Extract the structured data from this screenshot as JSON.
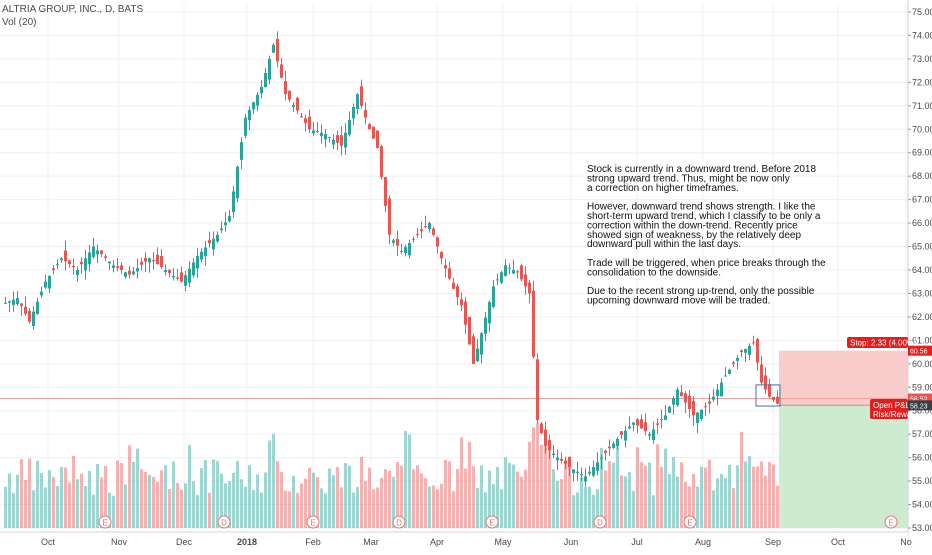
{
  "header": {
    "symbol": "ALTRIA GROUP, INC., D, BATS",
    "indicator": "Vol (20)"
  },
  "annotation": {
    "lines": [
      "Stock is currently in a downward trend. Before 2018",
      "strong upward trend. Thus, might be now only",
      "a correction on higher timeframes.",
      "",
      "However, downward trend shows strength. I like the",
      "short-term upward trend, which I classify to be only a",
      "correction within the down-trend. Recently price",
      "showed sign of weakness, by the relatively deep",
      "downward pull within the last days.",
      "",
      "Trade will be triggered, when price breaks through the",
      "consolidation to the downside.",
      "",
      "Due to the recent strong up-trend, only the possible",
      "upcoming downward move will be traded."
    ]
  },
  "position": {
    "stop_label": "Stop: 2.33 (4.00%)",
    "stop_price": "60.56",
    "current_price": "58.52",
    "entry_price": "58.23",
    "pnl_label": "Open P&L:",
    "risk_label": "Risk/Rewa"
  },
  "colors": {
    "up": "#26a69a",
    "down": "#ef5350",
    "stop_zone": "#f9cccc",
    "target_zone": "#cdebd1",
    "price_line": "#f2a0a0",
    "label_red": "#e31e1e"
  },
  "chart_data": {
    "type": "candlestick",
    "price_axis": {
      "ylim": [
        53,
        75
      ],
      "ticks": [
        "75.00",
        "74.00",
        "73.00",
        "72.00",
        "71.00",
        "70.00",
        "69.00",
        "68.00",
        "67.00",
        "66.00",
        "65.00",
        "64.00",
        "63.00",
        "62.00",
        "61.00",
        "60.00",
        "59.00",
        "58.00",
        "57.00",
        "56.00",
        "55.00",
        "54.00",
        "53.00"
      ]
    },
    "time_axis": {
      "labels": [
        "Oct",
        "Nov",
        "Dec",
        "2018",
        "Feb",
        "Mar",
        "Apr",
        "May",
        "Jun",
        "Jul",
        "Aug",
        "Sep",
        "Oct",
        "No"
      ]
    },
    "events": [
      {
        "label": "E",
        "month": "Nov"
      },
      {
        "label": "D",
        "month": "Dec"
      },
      {
        "label": "E",
        "month": "Feb"
      },
      {
        "label": "D",
        "month": "Mar"
      },
      {
        "label": "E",
        "month": "Apr"
      },
      {
        "label": "D",
        "month": "Jun"
      },
      {
        "label": "E",
        "month": "Jul"
      },
      {
        "label": "E",
        "month": "Oct"
      }
    ],
    "price_path": [
      [
        0,
        62.6
      ],
      [
        3,
        62.8
      ],
      [
        6,
        61.8
      ],
      [
        10,
        63.5
      ],
      [
        14,
        64.5
      ],
      [
        18,
        64.0
      ],
      [
        22,
        65.0
      ],
      [
        27,
        64.2
      ],
      [
        31,
        63.8
      ],
      [
        36,
        64.5
      ],
      [
        40,
        64.0
      ],
      [
        44,
        63.5
      ],
      [
        48,
        64.6
      ],
      [
        53,
        65.5
      ],
      [
        56,
        66.3
      ],
      [
        60,
        70.5
      ],
      [
        64,
        71.8
      ],
      [
        67,
        73.6
      ],
      [
        70,
        71.5
      ],
      [
        73,
        70.8
      ],
      [
        76,
        70.0
      ],
      [
        80,
        69.8
      ],
      [
        84,
        69.3
      ],
      [
        88,
        71.5
      ],
      [
        91,
        70.0
      ],
      [
        93,
        69.2
      ],
      [
        96,
        65.5
      ],
      [
        99,
        64.8
      ],
      [
        103,
        65.5
      ],
      [
        106,
        66.0
      ],
      [
        109,
        64.5
      ],
      [
        112,
        63.2
      ],
      [
        114,
        62.5
      ],
      [
        117,
        60.0
      ],
      [
        119,
        61.3
      ],
      [
        122,
        63.3
      ],
      [
        125,
        64.2
      ],
      [
        128,
        63.9
      ],
      [
        131,
        63.0
      ],
      [
        133,
        57.6
      ],
      [
        135,
        56.5
      ],
      [
        138,
        56.0
      ],
      [
        141,
        55.6
      ],
      [
        145,
        55.2
      ],
      [
        149,
        56.0
      ],
      [
        153,
        56.8
      ],
      [
        157,
        57.5
      ],
      [
        161,
        57.0
      ],
      [
        165,
        57.8
      ],
      [
        168,
        58.9
      ],
      [
        172,
        57.8
      ],
      [
        176,
        58.3
      ],
      [
        180,
        59.5
      ],
      [
        184,
        60.5
      ],
      [
        187,
        60.9
      ],
      [
        189,
        59.2
      ],
      [
        191,
        58.6
      ],
      [
        193,
        58.3
      ]
    ]
  }
}
